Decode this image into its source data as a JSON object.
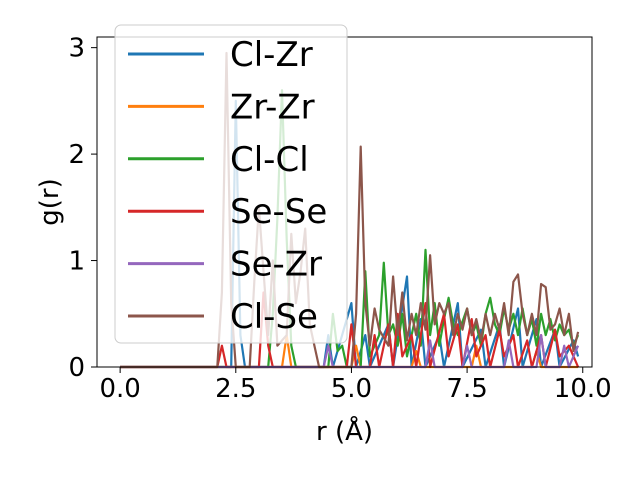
{
  "chart_data": {
    "type": "line",
    "title": "",
    "xlabel": "r (Å)",
    "ylabel": "g(r)",
    "xlim": [
      -0.5,
      10.2
    ],
    "ylim": [
      0,
      3.1
    ],
    "xticks": [
      0.0,
      2.5,
      5.0,
      7.5,
      10.0
    ],
    "xtick_labels": [
      "0.0",
      "2.5",
      "5.0",
      "7.5",
      "10.0"
    ],
    "yticks": [
      0,
      1,
      2,
      3
    ],
    "ytick_labels": [
      "0",
      "1",
      "2",
      "3"
    ],
    "grid": false,
    "legend_position": "upper-left",
    "colors": {
      "Cl-Zr": "#1f77b4",
      "Zr-Zr": "#ff7f0e",
      "Cl-Cl": "#2ca02c",
      "Se-Se": "#d62728",
      "Se-Zr": "#9467bd",
      "Cl-Se": "#8c564b"
    },
    "series": [
      {
        "name": "Cl-Zr",
        "points": [
          [
            0.0,
            0
          ],
          [
            2.4,
            0
          ],
          [
            2.5,
            2.5
          ],
          [
            2.6,
            0.3
          ],
          [
            2.7,
            0
          ],
          [
            4.4,
            0
          ],
          [
            4.5,
            0.3
          ],
          [
            4.6,
            0
          ],
          [
            5.0,
            0.6
          ],
          [
            5.1,
            0
          ],
          [
            5.3,
            0.3
          ],
          [
            5.4,
            0
          ],
          [
            5.8,
            0.4
          ],
          [
            5.9,
            0
          ],
          [
            6.2,
            0.85
          ],
          [
            6.3,
            0
          ],
          [
            6.5,
            0.45
          ],
          [
            6.6,
            0
          ],
          [
            6.9,
            0.3
          ],
          [
            7.0,
            0
          ],
          [
            7.3,
            0.6
          ],
          [
            7.4,
            0
          ],
          [
            7.8,
            0.35
          ],
          [
            7.9,
            0
          ],
          [
            8.2,
            0.4
          ],
          [
            8.3,
            0
          ],
          [
            8.6,
            0.55
          ],
          [
            8.7,
            0
          ],
          [
            9.0,
            0.45
          ],
          [
            9.1,
            0
          ],
          [
            9.4,
            0.35
          ],
          [
            9.5,
            0
          ],
          [
            9.8,
            0.25
          ],
          [
            9.9,
            0.1
          ]
        ]
      },
      {
        "name": "Zr-Zr",
        "points": [
          [
            0.0,
            0
          ],
          [
            3.5,
            0
          ],
          [
            3.6,
            0.3
          ],
          [
            3.7,
            0
          ],
          [
            5.0,
            0
          ],
          [
            5.1,
            0.2
          ],
          [
            5.2,
            0
          ],
          [
            6.3,
            0
          ],
          [
            6.4,
            0.15
          ],
          [
            6.5,
            0
          ],
          [
            7.6,
            0
          ],
          [
            7.7,
            0.2
          ],
          [
            7.8,
            0
          ],
          [
            8.9,
            0
          ],
          [
            9.0,
            0.15
          ],
          [
            9.1,
            0
          ],
          [
            9.9,
            0
          ]
        ]
      },
      {
        "name": "Cl-Cl",
        "points": [
          [
            0.0,
            0
          ],
          [
            3.2,
            0
          ],
          [
            3.3,
            0.5
          ],
          [
            3.4,
            1.4
          ],
          [
            3.5,
            2.6
          ],
          [
            3.6,
            1.2
          ],
          [
            3.7,
            0.2
          ],
          [
            3.8,
            0
          ],
          [
            4.5,
            0
          ],
          [
            4.6,
            0.5
          ],
          [
            4.7,
            0.15
          ],
          [
            4.8,
            0.2
          ],
          [
            4.9,
            0
          ],
          [
            5.2,
            0
          ],
          [
            5.3,
            0.9
          ],
          [
            5.4,
            0.1
          ],
          [
            5.6,
            0.3
          ],
          [
            5.7,
            0.98
          ],
          [
            5.8,
            0.3
          ],
          [
            5.9,
            0.4
          ],
          [
            6.0,
            0.2
          ],
          [
            6.1,
            0.5
          ],
          [
            6.2,
            0.1
          ],
          [
            6.4,
            0.5
          ],
          [
            6.5,
            0.2
          ],
          [
            6.6,
            1.1
          ],
          [
            6.7,
            0.3
          ],
          [
            6.8,
            0.6
          ],
          [
            6.9,
            0.2
          ],
          [
            7.0,
            0.45
          ],
          [
            7.1,
            0.65
          ],
          [
            7.2,
            0.4
          ],
          [
            7.3,
            0.3
          ],
          [
            7.5,
            0.55
          ],
          [
            7.6,
            0.3
          ],
          [
            7.7,
            0.4
          ],
          [
            7.8,
            0.2
          ],
          [
            7.9,
            0.5
          ],
          [
            8.0,
            0.65
          ],
          [
            8.1,
            0.4
          ],
          [
            8.2,
            0.3
          ],
          [
            8.3,
            0.55
          ],
          [
            8.4,
            0.35
          ],
          [
            8.5,
            0.5
          ],
          [
            8.6,
            0.3
          ],
          [
            8.7,
            0.55
          ],
          [
            8.8,
            0.3
          ],
          [
            8.9,
            0.45
          ],
          [
            9.0,
            0.2
          ],
          [
            9.1,
            0.5
          ],
          [
            9.2,
            0.3
          ],
          [
            9.3,
            0.45
          ],
          [
            9.4,
            0.25
          ],
          [
            9.5,
            0.4
          ],
          [
            9.6,
            0.3
          ],
          [
            9.7,
            0.35
          ],
          [
            9.8,
            0.2
          ],
          [
            9.9,
            0.3
          ]
        ]
      },
      {
        "name": "Se-Se",
        "points": [
          [
            0.0,
            0
          ],
          [
            2.1,
            0
          ],
          [
            2.2,
            0.2
          ],
          [
            2.3,
            0
          ],
          [
            3.0,
            0
          ],
          [
            3.1,
            0.7
          ],
          [
            3.2,
            0.2
          ],
          [
            3.3,
            0
          ],
          [
            4.9,
            0
          ],
          [
            5.0,
            0.4
          ],
          [
            5.1,
            0
          ],
          [
            5.4,
            0
          ],
          [
            5.5,
            0.3
          ],
          [
            5.6,
            0
          ],
          [
            5.8,
            0.4
          ],
          [
            5.9,
            0
          ],
          [
            6.0,
            0.5
          ],
          [
            6.1,
            0.1
          ],
          [
            6.3,
            0.3
          ],
          [
            6.4,
            0
          ],
          [
            6.6,
            0.6
          ],
          [
            6.7,
            0
          ],
          [
            7.0,
            0.5
          ],
          [
            7.1,
            0.1
          ],
          [
            7.3,
            0.4
          ],
          [
            7.4,
            0
          ],
          [
            7.6,
            0.45
          ],
          [
            7.7,
            0.1
          ],
          [
            7.9,
            0.3
          ],
          [
            8.0,
            0
          ],
          [
            8.2,
            0.35
          ],
          [
            8.3,
            0.1
          ],
          [
            8.5,
            0.3
          ],
          [
            8.6,
            0
          ],
          [
            8.8,
            0.25
          ],
          [
            8.9,
            0
          ],
          [
            9.1,
            0.3
          ],
          [
            9.2,
            0
          ],
          [
            9.4,
            0.35
          ],
          [
            9.5,
            0.1
          ],
          [
            9.7,
            0.2
          ],
          [
            9.9,
            0
          ]
        ]
      },
      {
        "name": "Se-Zr",
        "points": [
          [
            0.0,
            0
          ],
          [
            4.4,
            0
          ],
          [
            4.5,
            0.2
          ],
          [
            4.6,
            0
          ],
          [
            6.6,
            0
          ],
          [
            6.7,
            0.25
          ],
          [
            6.8,
            0
          ],
          [
            7.4,
            0
          ],
          [
            7.5,
            0.2
          ],
          [
            7.6,
            0
          ],
          [
            8.3,
            0
          ],
          [
            8.4,
            0.25
          ],
          [
            8.5,
            0
          ],
          [
            9.0,
            0
          ],
          [
            9.1,
            0.3
          ],
          [
            9.2,
            0
          ],
          [
            9.5,
            0
          ],
          [
            9.6,
            0.2
          ],
          [
            9.7,
            0
          ],
          [
            9.9,
            0.2
          ]
        ]
      },
      {
        "name": "Cl-Se",
        "points": [
          [
            0.0,
            0
          ],
          [
            2.1,
            0
          ],
          [
            2.2,
            0.7
          ],
          [
            2.3,
            2.95
          ],
          [
            2.4,
            0.6
          ],
          [
            2.5,
            0
          ],
          [
            2.8,
            0
          ],
          [
            2.9,
            0.8
          ],
          [
            3.0,
            1.5
          ],
          [
            3.1,
            0.9
          ],
          [
            3.2,
            0.3
          ],
          [
            3.3,
            1.0
          ],
          [
            3.4,
            0.2
          ],
          [
            3.6,
            0.3
          ],
          [
            3.7,
            1.25
          ],
          [
            3.8,
            0.6
          ],
          [
            3.9,
            0.9
          ],
          [
            4.0,
            1.3
          ],
          [
            4.1,
            0.4
          ],
          [
            4.2,
            0.2
          ],
          [
            4.3,
            0
          ],
          [
            5.0,
            0
          ],
          [
            5.1,
            0.5
          ],
          [
            5.2,
            2.07
          ],
          [
            5.3,
            0.6
          ],
          [
            5.4,
            0.2
          ],
          [
            5.5,
            0.55
          ],
          [
            5.6,
            0.35
          ],
          [
            5.8,
            0.2
          ],
          [
            5.9,
            0.85
          ],
          [
            6.0,
            0.3
          ],
          [
            6.1,
            0.7
          ],
          [
            6.2,
            0.25
          ],
          [
            6.3,
            0.5
          ],
          [
            6.4,
            0.3
          ],
          [
            6.5,
            0.6
          ],
          [
            6.6,
            0.35
          ],
          [
            6.7,
            1.05
          ],
          [
            6.8,
            0.4
          ],
          [
            6.9,
            0.6
          ],
          [
            7.0,
            0.5
          ],
          [
            7.1,
            0.6
          ],
          [
            7.2,
            0.3
          ],
          [
            7.3,
            0.5
          ],
          [
            7.4,
            0.35
          ],
          [
            7.5,
            0.55
          ],
          [
            7.6,
            0.3
          ],
          [
            7.7,
            0.45
          ],
          [
            7.8,
            0.25
          ],
          [
            7.9,
            0.5
          ],
          [
            8.0,
            0.3
          ],
          [
            8.1,
            0.5
          ],
          [
            8.2,
            0.35
          ],
          [
            8.3,
            0.6
          ],
          [
            8.4,
            0.3
          ],
          [
            8.5,
            0.8
          ],
          [
            8.6,
            0.87
          ],
          [
            8.7,
            0.5
          ],
          [
            8.8,
            0.3
          ],
          [
            8.9,
            0.5
          ],
          [
            9.0,
            0.3
          ],
          [
            9.1,
            0.78
          ],
          [
            9.2,
            0.75
          ],
          [
            9.3,
            0.35
          ],
          [
            9.4,
            0.4
          ],
          [
            9.5,
            0.55
          ],
          [
            9.6,
            0.3
          ],
          [
            9.7,
            0.5
          ],
          [
            9.8,
            0.15
          ],
          [
            9.9,
            0.33
          ]
        ]
      }
    ]
  }
}
